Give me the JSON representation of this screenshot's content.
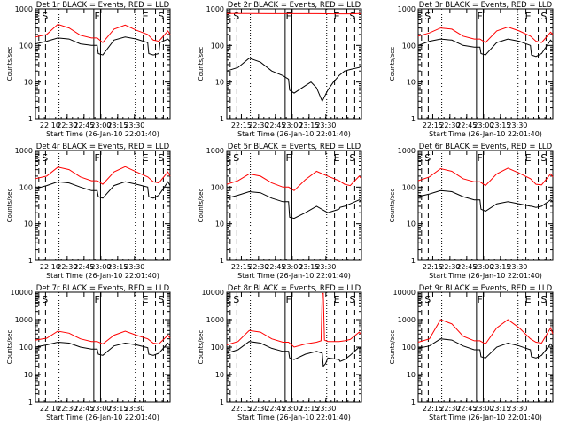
{
  "chart_data": {
    "type": "line",
    "layout": "3x3 grid of log-scale time series panels",
    "xlabel": "Start Time (26-Jan-10 22:01:40)",
    "ylabel": "Counts/sec",
    "yscale": "log",
    "ylim": [
      1,
      1000
    ],
    "y_ticks": [
      "1",
      "10",
      "100",
      "1000"
    ],
    "y_ticks_10k": [
      "1",
      "10",
      "100",
      "1000",
      "10000"
    ],
    "x_tick_labels": [
      "22:15",
      "22:30",
      "22:45",
      "23:00",
      "23:15",
      "23:30"
    ],
    "x_tick_labels_alt": [
      "22:10",
      "22:30",
      "22:45",
      "23:00",
      "23:15",
      "23:30"
    ],
    "series_colors": {
      "events": "#000000",
      "lld": "#ff0000"
    },
    "marker_letters": [
      "E",
      "S",
      "F",
      "E",
      "S"
    ],
    "panels": [
      {
        "title": "Det 1r BLACK = Events, RED = LLD",
        "ytop": 3,
        "xalt": true,
        "events": [
          [
            0,
            110
          ],
          [
            10,
            130
          ],
          [
            20,
            160
          ],
          [
            30,
            150
          ],
          [
            40,
            110
          ],
          [
            50,
            100
          ],
          [
            55,
            100
          ],
          [
            56,
            60
          ],
          [
            60,
            55
          ],
          [
            70,
            140
          ],
          [
            80,
            170
          ],
          [
            90,
            150
          ],
          [
            100,
            120
          ],
          [
            101,
            60
          ],
          [
            105,
            55
          ],
          [
            110,
            60
          ],
          [
            111,
            120
          ],
          [
            118,
            150
          ],
          [
            120,
            130
          ]
        ],
        "lld": [
          [
            0,
            170
          ],
          [
            10,
            200
          ],
          [
            20,
            380
          ],
          [
            30,
            300
          ],
          [
            40,
            190
          ],
          [
            50,
            160
          ],
          [
            55,
            160
          ],
          [
            60,
            120
          ],
          [
            70,
            280
          ],
          [
            80,
            360
          ],
          [
            90,
            260
          ],
          [
            100,
            200
          ],
          [
            105,
            140
          ],
          [
            110,
            130
          ],
          [
            118,
            250
          ],
          [
            120,
            200
          ]
        ]
      },
      {
        "title": "Det 2r BLACK = Events, RED = LLD",
        "ytop": 3,
        "xalt": false,
        "events": [
          [
            0,
            20
          ],
          [
            10,
            25
          ],
          [
            20,
            45
          ],
          [
            30,
            35
          ],
          [
            40,
            20
          ],
          [
            50,
            15
          ],
          [
            55,
            12
          ],
          [
            56,
            6
          ],
          [
            60,
            5
          ],
          [
            70,
            8
          ],
          [
            75,
            10
          ],
          [
            80,
            7
          ],
          [
            85,
            3
          ],
          [
            90,
            6
          ],
          [
            95,
            10
          ],
          [
            100,
            15
          ],
          [
            105,
            20
          ],
          [
            110,
            22
          ],
          [
            118,
            25
          ],
          [
            120,
            28
          ]
        ],
        "lld": [
          [
            0,
            750
          ],
          [
            20,
            750
          ],
          [
            40,
            740
          ],
          [
            60,
            740
          ],
          [
            80,
            740
          ],
          [
            100,
            730
          ],
          [
            110,
            730
          ],
          [
            118,
            750
          ],
          [
            120,
            720
          ]
        ]
      },
      {
        "title": "Det 3r BLACK = Events, RED = LLD",
        "ytop": 3,
        "xalt": false,
        "events": [
          [
            0,
            100
          ],
          [
            10,
            130
          ],
          [
            20,
            150
          ],
          [
            30,
            140
          ],
          [
            40,
            100
          ],
          [
            50,
            90
          ],
          [
            55,
            90
          ],
          [
            56,
            60
          ],
          [
            60,
            55
          ],
          [
            70,
            120
          ],
          [
            80,
            150
          ],
          [
            90,
            130
          ],
          [
            100,
            100
          ],
          [
            101,
            55
          ],
          [
            105,
            50
          ],
          [
            110,
            60
          ],
          [
            118,
            140
          ],
          [
            120,
            120
          ]
        ],
        "lld": [
          [
            0,
            180
          ],
          [
            10,
            220
          ],
          [
            20,
            300
          ],
          [
            30,
            280
          ],
          [
            40,
            180
          ],
          [
            50,
            150
          ],
          [
            55,
            150
          ],
          [
            60,
            120
          ],
          [
            70,
            250
          ],
          [
            80,
            320
          ],
          [
            90,
            250
          ],
          [
            100,
            180
          ],
          [
            105,
            130
          ],
          [
            110,
            120
          ],
          [
            118,
            230
          ],
          [
            120,
            200
          ]
        ]
      },
      {
        "title": "Det 4r BLACK = Events, RED = LLD",
        "ytop": 3,
        "xalt": true,
        "events": [
          [
            0,
            90
          ],
          [
            10,
            110
          ],
          [
            20,
            140
          ],
          [
            30,
            130
          ],
          [
            40,
            100
          ],
          [
            50,
            80
          ],
          [
            55,
            80
          ],
          [
            56,
            55
          ],
          [
            60,
            50
          ],
          [
            70,
            110
          ],
          [
            80,
            140
          ],
          [
            90,
            120
          ],
          [
            100,
            100
          ],
          [
            101,
            55
          ],
          [
            105,
            50
          ],
          [
            110,
            60
          ],
          [
            118,
            140
          ],
          [
            120,
            110
          ]
        ],
        "lld": [
          [
            0,
            170
          ],
          [
            10,
            200
          ],
          [
            20,
            350
          ],
          [
            30,
            300
          ],
          [
            40,
            190
          ],
          [
            50,
            150
          ],
          [
            55,
            150
          ],
          [
            60,
            120
          ],
          [
            70,
            260
          ],
          [
            80,
            360
          ],
          [
            90,
            260
          ],
          [
            100,
            190
          ],
          [
            105,
            140
          ],
          [
            110,
            130
          ],
          [
            118,
            260
          ],
          [
            120,
            200
          ]
        ]
      },
      {
        "title": "Det 5r BLACK = Events, RED = LLD",
        "ytop": 3,
        "xalt": false,
        "events": [
          [
            0,
            50
          ],
          [
            10,
            60
          ],
          [
            20,
            75
          ],
          [
            30,
            70
          ],
          [
            40,
            50
          ],
          [
            50,
            40
          ],
          [
            55,
            40
          ],
          [
            56,
            15
          ],
          [
            60,
            14
          ],
          [
            70,
            20
          ],
          [
            80,
            30
          ],
          [
            90,
            20
          ],
          [
            100,
            25
          ],
          [
            101,
            28
          ],
          [
            105,
            30
          ],
          [
            110,
            35
          ],
          [
            118,
            45
          ],
          [
            120,
            40
          ]
        ],
        "lld": [
          [
            0,
            120
          ],
          [
            10,
            150
          ],
          [
            20,
            230
          ],
          [
            30,
            200
          ],
          [
            40,
            130
          ],
          [
            50,
            100
          ],
          [
            55,
            100
          ],
          [
            60,
            80
          ],
          [
            70,
            160
          ],
          [
            80,
            270
          ],
          [
            90,
            200
          ],
          [
            100,
            150
          ],
          [
            105,
            120
          ],
          [
            110,
            110
          ],
          [
            118,
            200
          ],
          [
            120,
            170
          ]
        ]
      },
      {
        "title": "Det 6r BLACK = Events, RED = LLD",
        "ytop": 3,
        "xalt": false,
        "events": [
          [
            0,
            55
          ],
          [
            10,
            65
          ],
          [
            20,
            80
          ],
          [
            30,
            75
          ],
          [
            40,
            55
          ],
          [
            50,
            45
          ],
          [
            55,
            45
          ],
          [
            56,
            25
          ],
          [
            60,
            22
          ],
          [
            70,
            35
          ],
          [
            80,
            40
          ],
          [
            90,
            35
          ],
          [
            100,
            30
          ],
          [
            101,
            30
          ],
          [
            105,
            28
          ],
          [
            110,
            30
          ],
          [
            118,
            45
          ],
          [
            120,
            40
          ]
        ],
        "lld": [
          [
            0,
            150
          ],
          [
            10,
            190
          ],
          [
            20,
            320
          ],
          [
            30,
            270
          ],
          [
            40,
            170
          ],
          [
            50,
            140
          ],
          [
            55,
            140
          ],
          [
            60,
            110
          ],
          [
            70,
            230
          ],
          [
            80,
            330
          ],
          [
            90,
            240
          ],
          [
            100,
            170
          ],
          [
            105,
            120
          ],
          [
            110,
            115
          ],
          [
            118,
            230
          ],
          [
            120,
            190
          ]
        ]
      },
      {
        "title": "Det 7r BLACK = Events, RED = LLD",
        "ytop": 4,
        "xalt": true,
        "events": [
          [
            0,
            100
          ],
          [
            10,
            120
          ],
          [
            20,
            150
          ],
          [
            30,
            140
          ],
          [
            40,
            100
          ],
          [
            50,
            85
          ],
          [
            55,
            85
          ],
          [
            56,
            55
          ],
          [
            60,
            50
          ],
          [
            70,
            110
          ],
          [
            80,
            140
          ],
          [
            90,
            120
          ],
          [
            100,
            95
          ],
          [
            101,
            55
          ],
          [
            105,
            50
          ],
          [
            110,
            60
          ],
          [
            118,
            140
          ],
          [
            120,
            110
          ]
        ],
        "lld": [
          [
            0,
            180
          ],
          [
            10,
            210
          ],
          [
            20,
            380
          ],
          [
            30,
            320
          ],
          [
            40,
            200
          ],
          [
            50,
            160
          ],
          [
            55,
            160
          ],
          [
            60,
            130
          ],
          [
            70,
            270
          ],
          [
            80,
            380
          ],
          [
            90,
            270
          ],
          [
            100,
            200
          ],
          [
            105,
            140
          ],
          [
            110,
            130
          ],
          [
            118,
            270
          ],
          [
            120,
            210
          ]
        ]
      },
      {
        "title": "Det 8r BLACK = Events, RED = LLD",
        "ytop": 4,
        "xalt": false,
        "events": [
          [
            0,
            60
          ],
          [
            10,
            80
          ],
          [
            20,
            160
          ],
          [
            30,
            140
          ],
          [
            40,
            90
          ],
          [
            50,
            70
          ],
          [
            55,
            70
          ],
          [
            56,
            40
          ],
          [
            60,
            35
          ],
          [
            70,
            55
          ],
          [
            80,
            70
          ],
          [
            85,
            60
          ],
          [
            86,
            20
          ],
          [
            88,
            25
          ],
          [
            90,
            40
          ],
          [
            100,
            35
          ],
          [
            101,
            30
          ],
          [
            105,
            35
          ],
          [
            110,
            50
          ],
          [
            118,
            100
          ],
          [
            120,
            90
          ]
        ],
        "lld": [
          [
            0,
            120
          ],
          [
            10,
            160
          ],
          [
            20,
            400
          ],
          [
            30,
            350
          ],
          [
            40,
            200
          ],
          [
            50,
            150
          ],
          [
            55,
            150
          ],
          [
            60,
            100
          ],
          [
            70,
            130
          ],
          [
            80,
            150
          ],
          [
            84,
            170
          ],
          [
            85,
            9000
          ],
          [
            86,
            9000
          ],
          [
            87,
            180
          ],
          [
            90,
            160
          ],
          [
            100,
            160
          ],
          [
            105,
            170
          ],
          [
            110,
            190
          ],
          [
            118,
            350
          ],
          [
            120,
            280
          ]
        ]
      },
      {
        "title": "Det 9r BLACK = Events, RED = LLD",
        "ytop": 4,
        "xalt": false,
        "events": [
          [
            0,
            90
          ],
          [
            10,
            110
          ],
          [
            20,
            200
          ],
          [
            30,
            180
          ],
          [
            40,
            110
          ],
          [
            50,
            80
          ],
          [
            55,
            80
          ],
          [
            56,
            45
          ],
          [
            60,
            40
          ],
          [
            70,
            100
          ],
          [
            80,
            140
          ],
          [
            90,
            110
          ],
          [
            100,
            80
          ],
          [
            101,
            45
          ],
          [
            105,
            40
          ],
          [
            110,
            50
          ],
          [
            118,
            130
          ],
          [
            120,
            100
          ]
        ],
        "lld": [
          [
            0,
            150
          ],
          [
            10,
            200
          ],
          [
            20,
            1000
          ],
          [
            30,
            700
          ],
          [
            40,
            250
          ],
          [
            50,
            170
          ],
          [
            55,
            170
          ],
          [
            60,
            130
          ],
          [
            70,
            500
          ],
          [
            80,
            1000
          ],
          [
            90,
            500
          ],
          [
            100,
            200
          ],
          [
            105,
            150
          ],
          [
            110,
            140
          ],
          [
            118,
            500
          ],
          [
            120,
            300
          ]
        ]
      }
    ]
  }
}
